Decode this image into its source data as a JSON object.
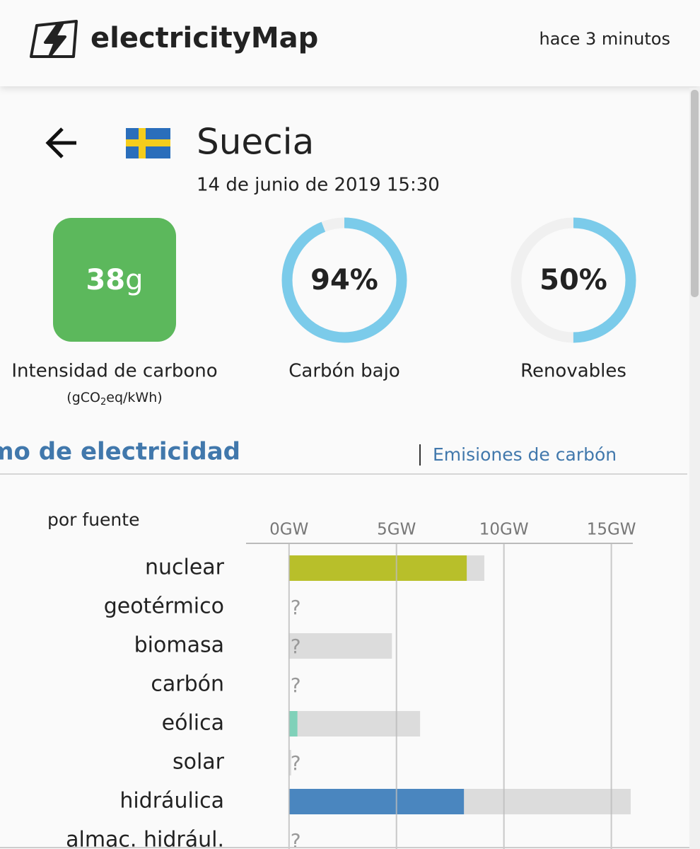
{
  "header": {
    "brand": "electricityMap",
    "updated": "hace 3 minutos"
  },
  "zone": {
    "name": "Suecia",
    "datetime": "14 de junio de 2019 15:30"
  },
  "intensity": {
    "value": 38,
    "unit": "g",
    "label": "Intensidad de carbono",
    "unit_parts": [
      "(gCO",
      "2",
      "eq/kWh)"
    ],
    "color": "#5cb85c"
  },
  "ratios": [
    {
      "value": 94,
      "value_label": "94%",
      "label": "Carbón bajo"
    },
    {
      "value": 50,
      "value_label": "50%",
      "label": "Renovables"
    }
  ],
  "tabs": {
    "active": "Consumo de electricidad",
    "other": "Emisiones de carbón"
  },
  "chart_data": {
    "type": "bar",
    "subtitle": "por fuente",
    "categories": [
      "nuclear",
      "geotérmico",
      "biomasa",
      "carbón",
      "eólica",
      "solar",
      "hidráulica",
      "almac. hidrául."
    ],
    "production": [
      8.27,
      null,
      null,
      null,
      0.39,
      null,
      8.14,
      null
    ],
    "capacity": [
      9.09,
      null,
      4.79,
      null,
      6.1,
      0.1,
      15.9,
      null
    ],
    "colors": [
      "#b8bf2a",
      "#f8d26c",
      "#166a57",
      "#000000",
      "#7fd1b9",
      "#f27406",
      "#4a86bf",
      "#0b2e6f"
    ],
    "capacity_color": "#dcdcdc",
    "missing_label": "?",
    "xlim": [
      -2,
      16
    ],
    "xticks": [
      {
        "value": 0,
        "label": "0GW"
      },
      {
        "value": 5,
        "label": "5GW"
      },
      {
        "value": 10,
        "label": "10GW"
      },
      {
        "value": 15,
        "label": "15GW"
      }
    ],
    "grid": true
  }
}
